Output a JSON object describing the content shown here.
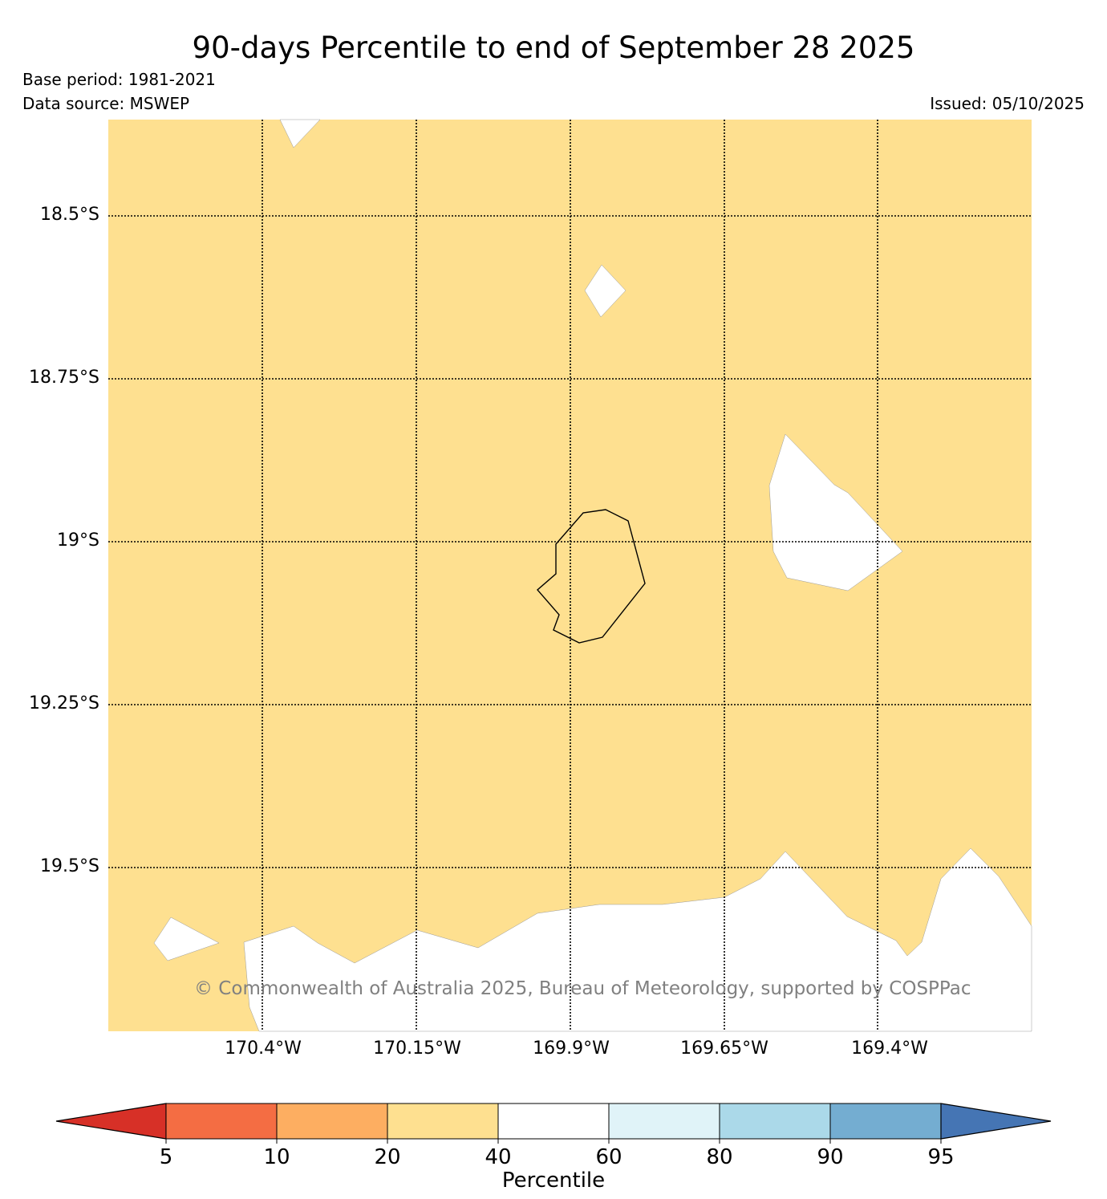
{
  "title": "90-days Percentile to end of September 28 2025",
  "base_period": "Base period: 1981-2021",
  "data_source": "Data source: MSWEP",
  "issued": "Issued: 05/10/2025",
  "copyright": "© Commonwealth of Australia 2025, Bureau of Meteorology, supported by COSPPac",
  "map": {
    "fill_color": "#fee090",
    "no_data_color": "#ffffff",
    "lat_labels": [
      "18.5°S",
      "18.75°S",
      "19°S",
      "19.25°S",
      "19.5°S"
    ],
    "lon_labels": [
      "170.4°W",
      "170.15°W",
      "169.9°W",
      "169.65°W",
      "169.4°W"
    ]
  },
  "colorbar": {
    "label": "Percentile",
    "ticks": [
      "5",
      "10",
      "20",
      "40",
      "60",
      "80",
      "90",
      "95"
    ],
    "colors": [
      "#d73027",
      "#f46d43",
      "#fdae61",
      "#fee090",
      "#ffffff",
      "#e0f3f8",
      "#abd9e9",
      "#74add1",
      "#4575b4"
    ]
  }
}
